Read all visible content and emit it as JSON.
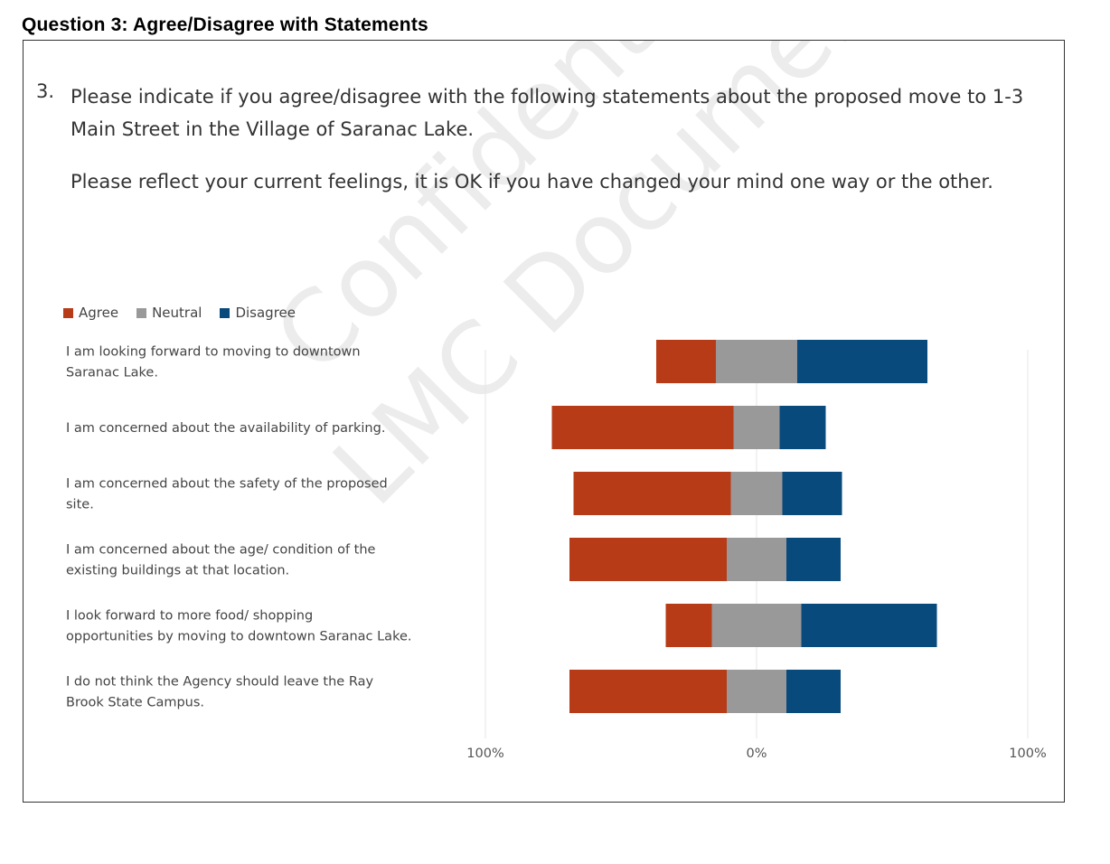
{
  "page": {
    "heading": "Question 3: Agree/Disagree with Statements",
    "question_number": "3.",
    "question_paragraphs": [
      "Please indicate if you agree/disagree with the following statements about the proposed move to 1-3 Main Street in the Village of Saranac Lake.",
      "Please reflect your current feelings, it is OK if you have changed your mind one way or the other."
    ],
    "watermark_lines": [
      "Confidential",
      "LMC Document"
    ]
  },
  "colors": {
    "agree": "#b83b17",
    "neutral": "#999999",
    "disagree": "#084a7c",
    "gridline": "#e6e6e6"
  },
  "chart_data": {
    "type": "bar",
    "orientation": "horizontal-diverging",
    "legend_position": "top-left",
    "grid": true,
    "xlim": [
      -100,
      100
    ],
    "x_ticks": [
      "100%",
      "0%",
      "100%"
    ],
    "series_names": [
      "Agree",
      "Neutral",
      "Disagree"
    ],
    "categories": [
      "I am looking forward to moving to downtown Saranac Lake.",
      "I am concerned about the availability of parking.",
      "I am concerned about the safety of the proposed site.",
      "I am concerned about the age/ condition of the existing buildings at that location.",
      "I look forward to more food/ shopping opportunities by moving to downtown Saranac Lake.",
      "I do not think the Agency should leave the Ray Brook State Campus."
    ],
    "series": [
      {
        "name": "Agree",
        "values": [
          22,
          67,
          58,
          58,
          17,
          58
        ]
      },
      {
        "name": "Neutral",
        "values": [
          30,
          17,
          19,
          22,
          33,
          22
        ]
      },
      {
        "name": "Disagree",
        "values": [
          48,
          17,
          22,
          20,
          50,
          20
        ]
      }
    ]
  }
}
